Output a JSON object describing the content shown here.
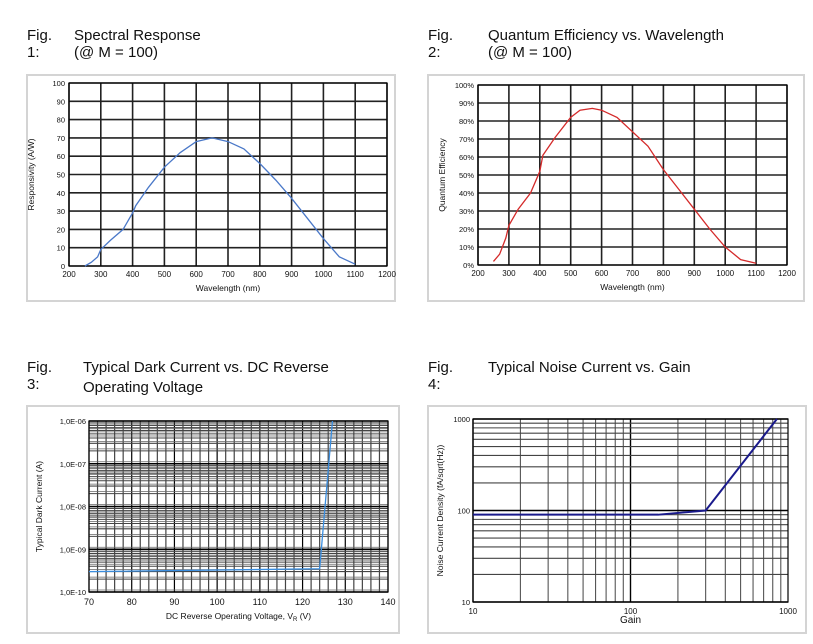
{
  "chart_data": [
    {
      "type": "line",
      "fig": "Fig. 1:",
      "title": "Spectral Response",
      "subtitle": "(@ M = 100)",
      "xlabel": "Wavelength (nm)",
      "ylabel": "Responsivity (A/W)",
      "xlim": [
        200,
        1200
      ],
      "ylim": [
        0,
        100
      ],
      "xticks": [
        200,
        300,
        400,
        500,
        600,
        700,
        800,
        900,
        1000,
        1100,
        1200
      ],
      "yticks": [
        0,
        10,
        20,
        30,
        40,
        50,
        60,
        70,
        80,
        90,
        100
      ],
      "ytick_suffix": "",
      "color": "#4a78c8",
      "grid": true,
      "x": [
        250,
        270,
        290,
        300,
        330,
        370,
        400,
        410,
        450,
        500,
        550,
        600,
        650,
        700,
        750,
        800,
        850,
        900,
        950,
        1000,
        1050,
        1100
      ],
      "y": [
        0,
        2,
        5,
        9,
        14,
        20,
        29,
        33,
        43,
        54,
        62,
        68,
        70,
        68,
        64,
        56,
        47,
        37,
        26,
        15,
        5,
        1
      ]
    },
    {
      "type": "line",
      "fig": "Fig. 2:",
      "title": "Quantum Efficiency vs. Wavelength",
      "subtitle": "(@ M = 100)",
      "xlabel": "Wavelength (nm)",
      "ylabel": "Quantum Efficiency",
      "xlim": [
        200,
        1200
      ],
      "ylim": [
        0,
        100
      ],
      "xticks": [
        200,
        300,
        400,
        500,
        600,
        700,
        800,
        900,
        1000,
        1100,
        1200
      ],
      "yticks": [
        0,
        10,
        20,
        30,
        40,
        50,
        60,
        70,
        80,
        90,
        100
      ],
      "ytick_suffix": "%",
      "color": "#d42a2a",
      "grid": true,
      "x": [
        250,
        270,
        290,
        300,
        330,
        370,
        400,
        410,
        450,
        500,
        530,
        570,
        600,
        650,
        700,
        750,
        800,
        850,
        900,
        950,
        1000,
        1050,
        1100
      ],
      "y": [
        2,
        6,
        15,
        22,
        31,
        40,
        52,
        61,
        71,
        82,
        86,
        87,
        86,
        82,
        74,
        66,
        53,
        42,
        31,
        20,
        10,
        3,
        1
      ]
    },
    {
      "type": "line",
      "fig": "Fig. 3:",
      "title": "Typical Dark Current vs. DC Reverse",
      "subtitle": "Operating Voltage",
      "xlabel": "DC Reverse Operating Voltage, V",
      "xlabel_sub": "R",
      "xlabel_suffix": " (V)",
      "ylabel": "Typical Dark Current (A)",
      "xlim": [
        70,
        140
      ],
      "ylim": [
        1e-10,
        1e-06
      ],
      "yscale": "log",
      "xticks": [
        70,
        80,
        90,
        100,
        110,
        120,
        130,
        140
      ],
      "ytick_labels": [
        "1,0E-10",
        "1,0E-09",
        "1,0E-08",
        "1,0E-07",
        "1,0E-06"
      ],
      "color": "#3a8ee0",
      "grid": true,
      "x": [
        70,
        124,
        127
      ],
      "y": [
        3e-10,
        3.5e-10,
        1e-06
      ]
    },
    {
      "type": "line",
      "fig": "Fig. 4:",
      "title": "Typical Noise Current vs. Gain",
      "xlabel": "Gain",
      "ylabel": "Noise Current Density (fA/sqrt(Hz))",
      "xlim": [
        10,
        1000
      ],
      "ylim": [
        10,
        1000
      ],
      "xscale": "log",
      "yscale": "log",
      "xtick_labels": [
        "10",
        "100",
        "1000"
      ],
      "ytick_labels": [
        "10",
        "100",
        "1000"
      ],
      "color": "#1a1a8c",
      "grid": true,
      "x": [
        10,
        150,
        300,
        850
      ],
      "y": [
        90,
        90,
        100,
        1000
      ]
    }
  ]
}
